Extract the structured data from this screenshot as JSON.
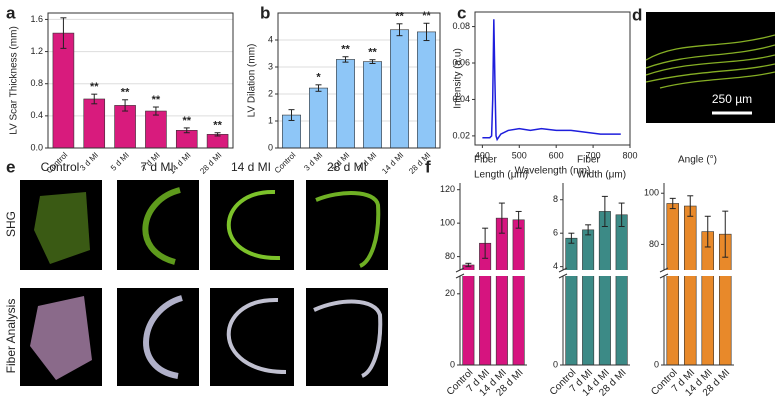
{
  "chart_data": [
    {
      "type": "bar",
      "panel": "a",
      "ylabel": "LV Scar Thickness (mm)",
      "categories": [
        "Control",
        "3 d MI",
        "5 d MI",
        "7 d MI",
        "14 d MI",
        "28 d MI"
      ],
      "values": [
        1.43,
        0.61,
        0.53,
        0.46,
        0.22,
        0.17
      ],
      "errors": [
        0.19,
        0.06,
        0.07,
        0.05,
        0.03,
        0.02
      ],
      "annotations": [
        null,
        "**",
        "**",
        "**",
        "**",
        "**"
      ],
      "color": "#d81b7d",
      "ylim": [
        0,
        1.68
      ],
      "yticks": [
        {
          "value": 0,
          "label": "0.0"
        },
        0.4,
        0.8,
        1.2,
        1.6
      ],
      "grid": true
    },
    {
      "type": "bar",
      "panel": "b",
      "ylabel": "LV Dilation (mm)",
      "categories": [
        "Control",
        "3 d MI",
        "5 d MI",
        "7 d MI",
        "14 d MI",
        "28 d MI"
      ],
      "values": [
        1.22,
        2.22,
        3.28,
        3.2,
        4.38,
        4.3
      ],
      "errors": [
        0.2,
        0.12,
        0.1,
        0.07,
        0.22,
        0.32
      ],
      "annotations": [
        null,
        "*",
        "**",
        "**",
        "**",
        "**"
      ],
      "color": "#8ec6f7",
      "ylim": [
        0,
        5
      ],
      "yticks": [
        0,
        1,
        2,
        3,
        4
      ],
      "grid": true
    },
    {
      "type": "line",
      "panel": "c",
      "xlabel": "Wavelength (nm)",
      "ylabel": "Intensity (a.u)",
      "x": [
        400,
        410,
        420,
        425,
        428,
        431,
        434,
        437,
        440,
        450,
        470,
        500,
        530,
        560,
        600,
        640,
        680,
        720,
        750,
        775
      ],
      "values": [
        0.019,
        0.019,
        0.019,
        0.02,
        0.04,
        0.084,
        0.05,
        0.02,
        0.018,
        0.021,
        0.023,
        0.024,
        0.023,
        0.024,
        0.023,
        0.023,
        0.022,
        0.021,
        0.021,
        0.021
      ],
      "color": "#1e1edc",
      "xlim": [
        380,
        800
      ],
      "ylim": [
        0.015,
        0.088
      ],
      "xticks": [
        400,
        500,
        600,
        700,
        800
      ],
      "yticks": [
        0.02,
        0.04,
        0.06,
        0.08
      ]
    },
    {
      "type": "bar",
      "panel": "f",
      "title": [
        "Fiber",
        "Length (μm)"
      ],
      "categories": [
        "Control",
        "7 d MI",
        "14 d MI",
        "28 d MI"
      ],
      "values": [
        75,
        88,
        103,
        102
      ],
      "errors": [
        1,
        9,
        9,
        5
      ],
      "color": "#d6147f",
      "ylim": [
        0,
        124
      ],
      "axis_break": [
        25,
        72
      ],
      "yticks": [
        0,
        20,
        80,
        100,
        120
      ]
    },
    {
      "type": "bar",
      "title": [
        "Fiber",
        "Width (μm)"
      ],
      "categories": [
        "Control",
        "7 d MI",
        "14 d MI",
        "28 d MI"
      ],
      "values": [
        5.7,
        6.2,
        7.3,
        7.1
      ],
      "errors": [
        0.3,
        0.3,
        0.9,
        0.7
      ],
      "color": "#3c8a86",
      "ylim": [
        0,
        9
      ],
      "axis_break": [
        1.5,
        3.8
      ],
      "yticks": [
        0,
        4,
        6,
        8
      ]
    },
    {
      "type": "bar",
      "title": [
        "Angle (°)"
      ],
      "categories": [
        "Control",
        "7 d MI",
        "14 d MI",
        "28 d MI"
      ],
      "values": [
        96,
        95,
        85,
        84
      ],
      "errors": [
        2,
        4,
        6,
        9
      ],
      "color": "#e8892a",
      "ylim": [
        0,
        104
      ],
      "axis_break": [
        25,
        70
      ],
      "yticks": [
        0,
        80,
        100
      ]
    }
  ],
  "panel_d": {
    "panel": "d",
    "scale_bar": "250 µm"
  },
  "panel_e": {
    "panel": "e",
    "columns": [
      "Control",
      "7 d MI",
      "14 d MI",
      "28 d MI"
    ],
    "rows": [
      "SHG",
      "Fiber Analysis"
    ]
  }
}
